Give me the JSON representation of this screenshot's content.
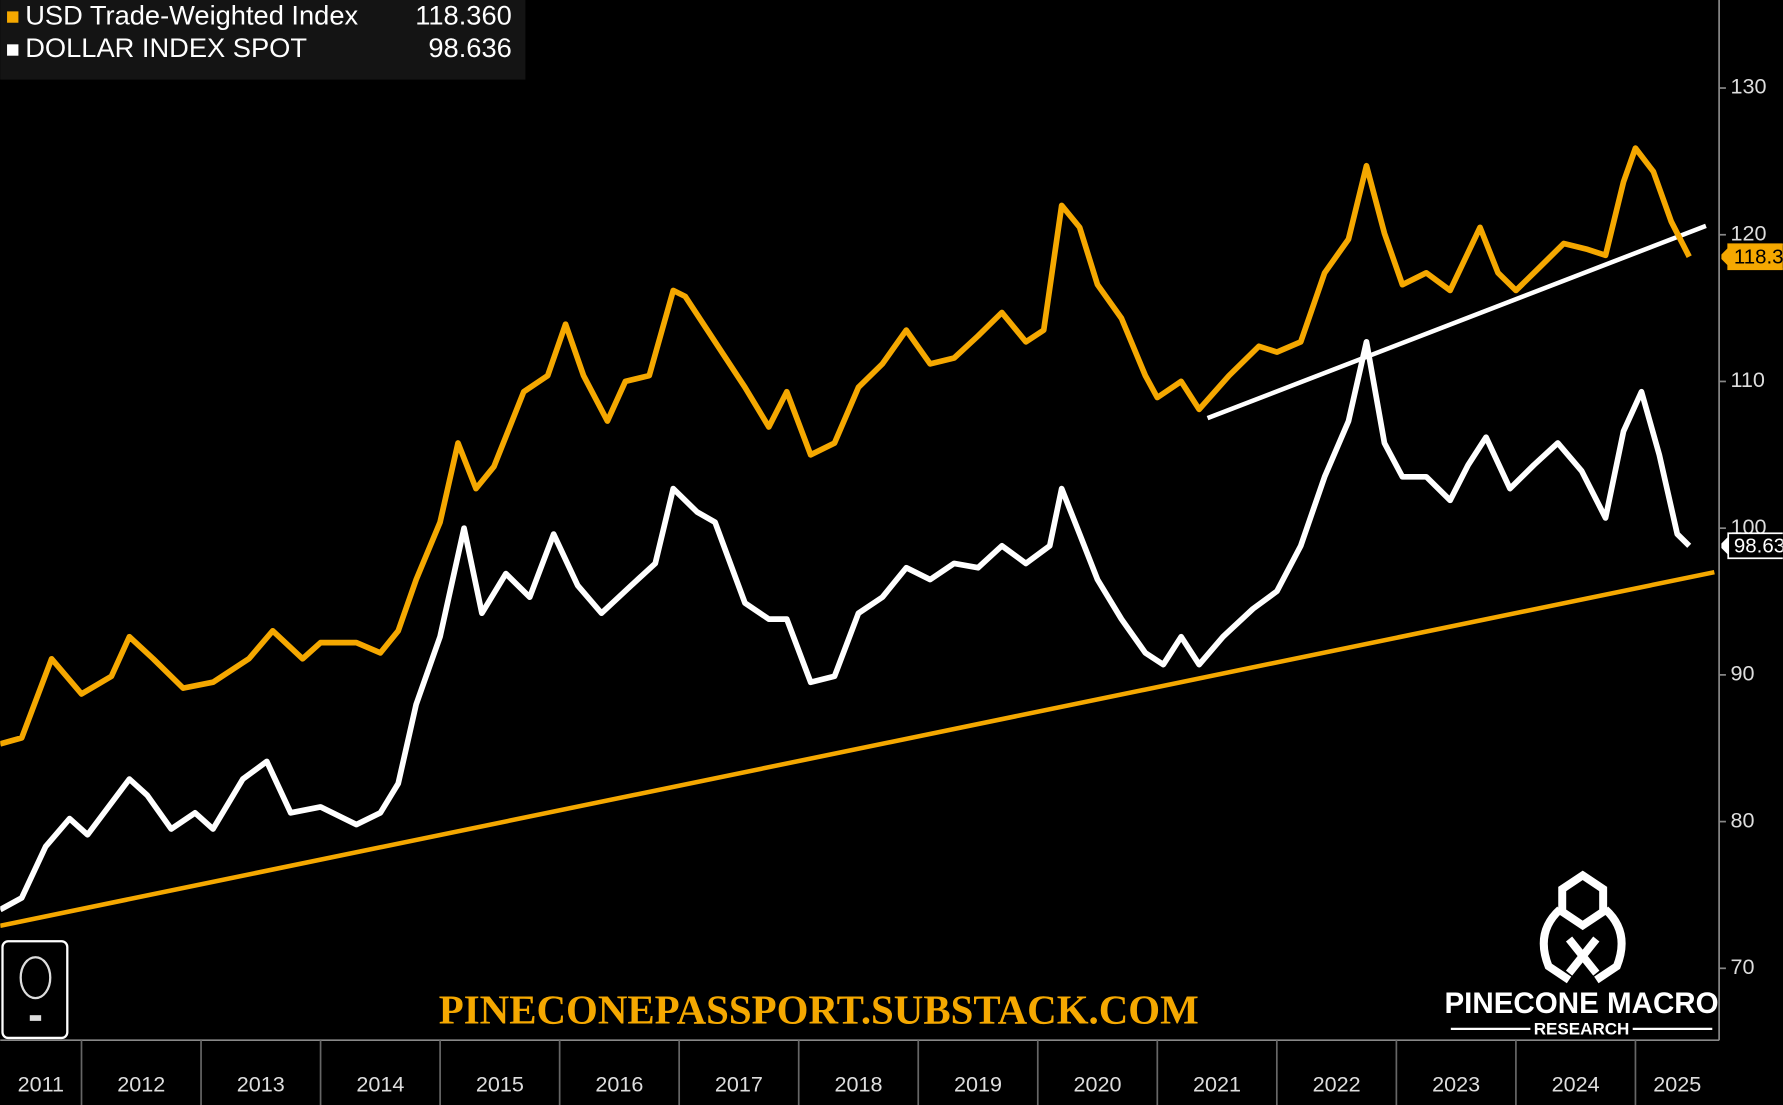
{
  "chart_data": {
    "type": "line",
    "legend": "top-left",
    "xlim": [
      2011.32,
      2025.7
    ],
    "xticks": [
      2011,
      2012,
      2013,
      2014,
      2015,
      2016,
      2017,
      2018,
      2019,
      2020,
      2021,
      2022,
      2023,
      2024,
      2025
    ],
    "ylim": [
      65.1,
      136
    ],
    "yticks": [
      70,
      80,
      90,
      100,
      110,
      120,
      130
    ],
    "series": [
      {
        "name": "USD Trade-Weighted Index",
        "last_label": "118.360",
        "color": "#f5a800",
        "x": [
          2011.32,
          2011.5,
          2011.75,
          2012.0,
          2012.25,
          2012.4,
          2012.6,
          2012.85,
          2013.1,
          2013.4,
          2013.6,
          2013.85,
          2014.0,
          2014.3,
          2014.5,
          2014.65,
          2014.8,
          2015.0,
          2015.15,
          2015.3,
          2015.45,
          2015.7,
          2015.9,
          2016.05,
          2016.2,
          2016.4,
          2016.55,
          2016.75,
          2016.95,
          2017.05,
          2017.3,
          2017.55,
          2017.75,
          2017.9,
          2018.1,
          2018.3,
          2018.5,
          2018.7,
          2018.9,
          2019.1,
          2019.3,
          2019.5,
          2019.7,
          2019.9,
          2020.05,
          2020.2,
          2020.35,
          2020.5,
          2020.7,
          2020.9,
          2021.0,
          2021.2,
          2021.35,
          2021.6,
          2021.85,
          2022.0,
          2022.2,
          2022.4,
          2022.6,
          2022.75,
          2022.9,
          2023.05,
          2023.25,
          2023.45,
          2023.7,
          2023.85,
          2024.0,
          2024.2,
          2024.4,
          2024.6,
          2024.75,
          2024.9,
          2025.0,
          2025.15,
          2025.3,
          2025.45
        ],
        "values": [
          85.3,
          85.7,
          91.1,
          88.7,
          89.9,
          92.6,
          91.1,
          89.1,
          89.5,
          91.1,
          93.0,
          91.1,
          92.2,
          92.2,
          91.5,
          93.0,
          96.5,
          100.4,
          105.8,
          102.7,
          104.2,
          109.3,
          110.4,
          113.9,
          110.4,
          107.3,
          110.0,
          110.4,
          116.2,
          115.8,
          112.7,
          109.6,
          106.9,
          109.3,
          105.0,
          105.8,
          109.6,
          111.2,
          113.5,
          111.2,
          111.6,
          113.1,
          114.7,
          112.7,
          113.5,
          122.0,
          120.5,
          116.6,
          114.3,
          110.4,
          108.9,
          110.0,
          108.1,
          110.4,
          112.4,
          112.0,
          112.7,
          117.4,
          119.7,
          124.7,
          120.1,
          116.6,
          117.4,
          116.2,
          120.5,
          117.4,
          116.2,
          117.8,
          119.4,
          119.0,
          118.6,
          123.6,
          125.9,
          124.3,
          120.9,
          118.5
        ]
      },
      {
        "name": "DOLLAR INDEX SPOT",
        "last_label": "98.636",
        "color": "#ffffff",
        "x": [
          2011.32,
          2011.5,
          2011.7,
          2011.9,
          2012.05,
          2012.4,
          2012.55,
          2012.75,
          2012.95,
          2013.1,
          2013.35,
          2013.55,
          2013.75,
          2014.0,
          2014.3,
          2014.5,
          2014.65,
          2014.8,
          2015.0,
          2015.2,
          2015.35,
          2015.55,
          2015.75,
          2015.95,
          2016.15,
          2016.35,
          2016.6,
          2016.8,
          2016.95,
          2017.15,
          2017.3,
          2017.55,
          2017.75,
          2017.9,
          2018.1,
          2018.3,
          2018.5,
          2018.7,
          2018.9,
          2019.1,
          2019.3,
          2019.5,
          2019.7,
          2019.9,
          2020.1,
          2020.2,
          2020.35,
          2020.5,
          2020.7,
          2020.9,
          2021.05,
          2021.2,
          2021.35,
          2021.55,
          2021.8,
          2022.0,
          2022.2,
          2022.4,
          2022.6,
          2022.75,
          2022.9,
          2023.05,
          2023.25,
          2023.45,
          2023.6,
          2023.75,
          2023.95,
          2024.15,
          2024.35,
          2024.55,
          2024.75,
          2024.9,
          2025.05,
          2025.2,
          2025.35,
          2025.45
        ],
        "values": [
          74.0,
          74.8,
          78.3,
          80.2,
          79.1,
          82.9,
          81.8,
          79.5,
          80.6,
          79.5,
          82.9,
          84.1,
          80.6,
          81.0,
          79.8,
          80.6,
          82.6,
          88.0,
          92.6,
          100.0,
          94.2,
          96.9,
          95.3,
          99.6,
          96.1,
          94.2,
          96.1,
          97.6,
          102.7,
          101.1,
          100.4,
          94.9,
          93.8,
          93.8,
          89.5,
          89.9,
          94.2,
          95.3,
          97.3,
          96.5,
          97.6,
          97.3,
          98.8,
          97.6,
          98.8,
          102.7,
          99.6,
          96.5,
          93.8,
          91.5,
          90.7,
          92.6,
          90.7,
          92.6,
          94.5,
          95.7,
          98.8,
          103.5,
          107.3,
          112.7,
          105.8,
          103.5,
          103.5,
          101.9,
          104.3,
          106.2,
          102.7,
          104.3,
          105.8,
          103.9,
          100.7,
          106.6,
          109.3,
          105.0,
          99.6,
          98.8
        ]
      }
    ],
    "trendlines": [
      {
        "color": "#f5a800",
        "x": [
          2011.32,
          2025.66
        ],
        "values": [
          72.9,
          97.0
        ]
      },
      {
        "color": "#ffffff",
        "x": [
          2021.42,
          2025.59
        ],
        "values": [
          107.5,
          120.6
        ]
      }
    ],
    "watermark": "PINECONEPASSPORT.SUBSTACK.COM",
    "brand": "PINECONE MACRO",
    "brand_sub": "RESEARCH"
  }
}
